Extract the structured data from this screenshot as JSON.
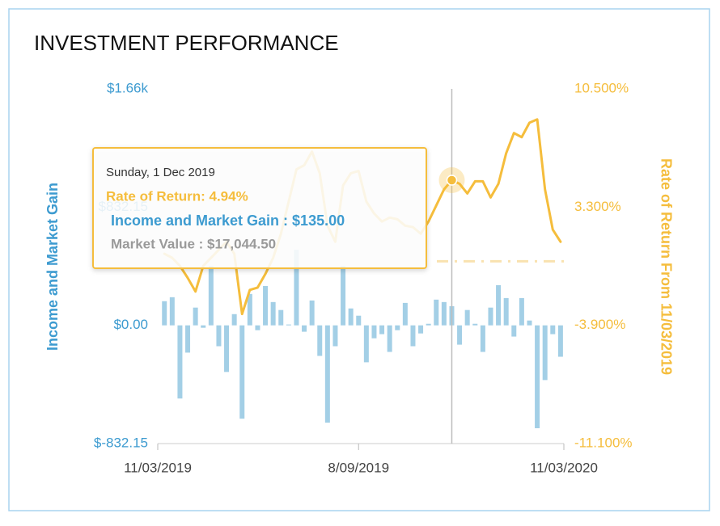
{
  "chart_data": {
    "type": "combo",
    "title": "INVESTMENT PERFORMANCE",
    "ylabel": "Income and Market Gain",
    "y2label": "Rate of Return From 11/03/2019",
    "x": [
      "2019-03-17",
      "2019-03-24",
      "2019-03-31",
      "2019-04-07",
      "2019-04-14",
      "2019-04-21",
      "2019-04-28",
      "2019-05-05",
      "2019-05-12",
      "2019-05-19",
      "2019-05-26",
      "2019-06-02",
      "2019-06-09",
      "2019-06-16",
      "2019-06-23",
      "2019-06-30",
      "2019-07-07",
      "2019-07-14",
      "2019-07-21",
      "2019-07-28",
      "2019-08-04",
      "2019-08-11",
      "2019-08-18",
      "2019-08-25",
      "2019-09-01",
      "2019-09-08",
      "2019-09-15",
      "2019-09-22",
      "2019-09-29",
      "2019-10-06",
      "2019-10-13",
      "2019-10-20",
      "2019-10-27",
      "2019-11-03",
      "2019-11-10",
      "2019-11-17",
      "2019-11-24",
      "2019-12-01",
      "2019-12-08",
      "2019-12-15",
      "2019-12-22",
      "2019-12-29",
      "2020-01-05",
      "2020-01-12",
      "2020-01-19",
      "2020-01-26",
      "2020-02-02",
      "2020-02-09",
      "2020-02-16",
      "2020-02-23",
      "2020-03-01",
      "2020-03-08"
    ],
    "xlim": [
      "2019-03-11",
      "2020-03-11"
    ],
    "xticks": [
      {
        "value": "2019-03-11",
        "label": "11/03/2019"
      },
      {
        "value": "2019-09-08",
        "label": "8/09/2019"
      },
      {
        "value": "2020-03-11",
        "label": "11/03/2020"
      }
    ],
    "ylim": [
      -832.15,
      1664.3
    ],
    "yticks": [
      {
        "value": -832.15,
        "label": "$-832.15"
      },
      {
        "value": 0,
        "label": "$0.00"
      },
      {
        "value": 832.15,
        "label": "$832.15"
      },
      {
        "value": 1664.3,
        "label": "$1.66k"
      }
    ],
    "y2lim": [
      -11.1,
      10.5
    ],
    "y2ticks": [
      {
        "value": -11.1,
        "label": "-11.100%"
      },
      {
        "value": -3.9,
        "label": "-3.900%"
      },
      {
        "value": 3.3,
        "label": "3.300%"
      },
      {
        "value": 10.5,
        "label": "10.500%"
      }
    ],
    "series": [
      {
        "type": "bar",
        "color": "#a3cfe6",
        "values": [
          170,
          198,
          -515,
          -192,
          125,
          -17,
          419,
          -147,
          -328,
          79,
          -657,
          221,
          -34,
          277,
          164,
          108,
          6,
          532,
          -45,
          175,
          -215,
          -685,
          -147,
          419,
          119,
          68,
          -260,
          -91,
          -62,
          -187,
          -34,
          158,
          -147,
          -57,
          11,
          181,
          164,
          135,
          -136,
          108,
          11,
          -187,
          125,
          283,
          192,
          -79,
          192,
          34,
          -724,
          -385,
          -62,
          -221
        ]
      },
      {
        "type": "line",
        "axis": "y2",
        "color": "#f5bd3c",
        "values": [
          0.46,
          0.21,
          -0.28,
          -1.01,
          -1.84,
          -0.28,
          0.21,
          0.7,
          1.19,
          0.46,
          -3.21,
          -1.74,
          -1.6,
          -0.77,
          0.21,
          1.68,
          3.64,
          5.6,
          5.85,
          6.68,
          5.36,
          2.17,
          1.19,
          4.62,
          5.36,
          5.5,
          3.64,
          2.91,
          2.42,
          2.66,
          2.56,
          2.17,
          2.08,
          1.68,
          2.42,
          3.4,
          4.38,
          4.94,
          4.72,
          4.13,
          4.87,
          4.87,
          3.89,
          4.72,
          6.58,
          7.81,
          7.56,
          8.44,
          8.64,
          4.38,
          1.93,
          1.19
        ]
      }
    ],
    "tooltip": {
      "x": "2019-12-01",
      "date": "Sunday, 1 Dec 2019",
      "rate": "Rate of Return: 4.94%",
      "income": "Income and Market Gain : $135.00",
      "market_value": "Market Value : $17,044.50"
    }
  }
}
